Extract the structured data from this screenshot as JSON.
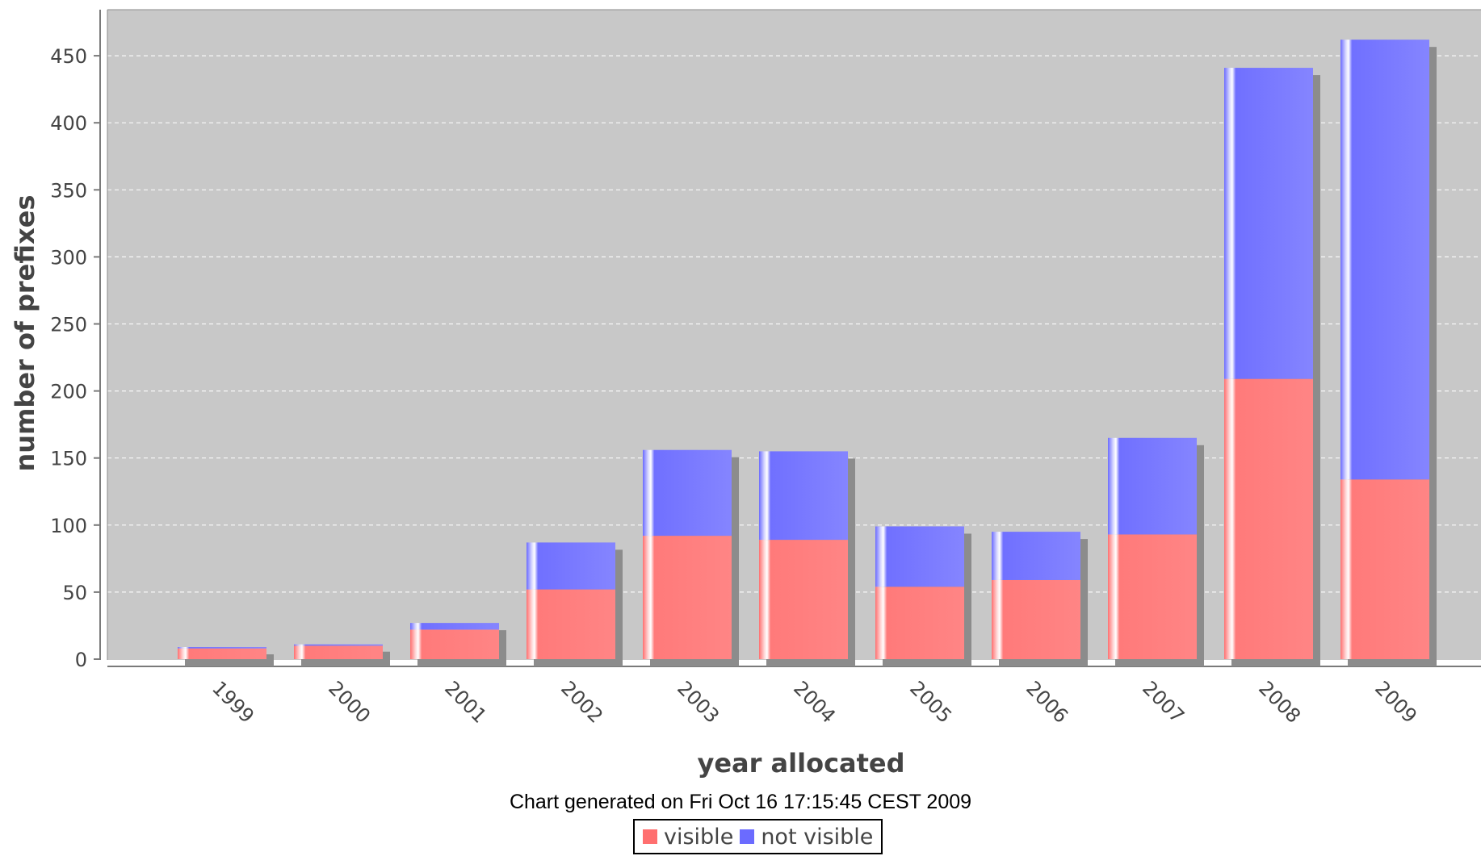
{
  "chart_data": {
    "type": "bar",
    "stacked": true,
    "categories": [
      "1999",
      "2000",
      "2001",
      "2002",
      "2003",
      "2004",
      "2005",
      "2006",
      "2007",
      "2008",
      "2009"
    ],
    "series": [
      {
        "name": "visible",
        "color": "#ff6f6f",
        "values": [
          8,
          10,
          22,
          52,
          92,
          89,
          54,
          59,
          93,
          209,
          134
        ]
      },
      {
        "name": "not visible",
        "color": "#6b6bff",
        "values": [
          1,
          1,
          5,
          35,
          64,
          66,
          45,
          36,
          72,
          232,
          328
        ]
      }
    ],
    "xlabel": "year allocated",
    "ylabel": "number of prefixes",
    "ylim": [
      0,
      470
    ],
    "yticks": [
      0,
      50,
      100,
      150,
      200,
      250,
      300,
      350,
      400,
      450
    ],
    "grid": true,
    "legend": "bottom-center",
    "footnote": "Chart generated on Fri Oct 16 17:15:45 CEST 2009"
  }
}
